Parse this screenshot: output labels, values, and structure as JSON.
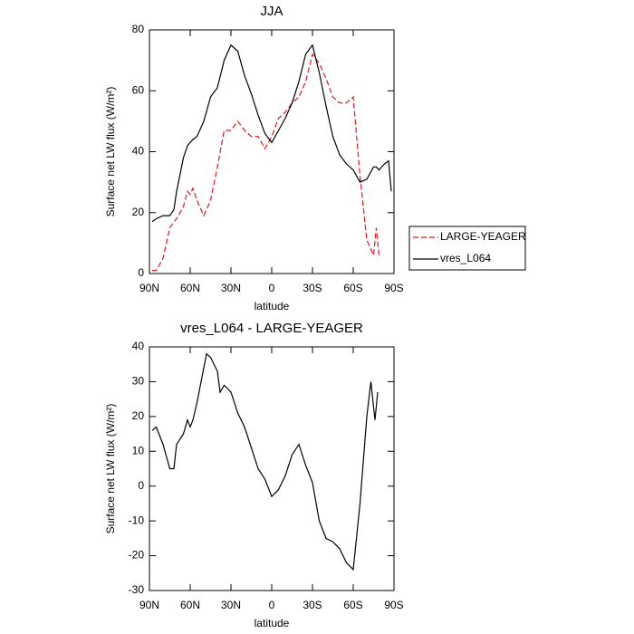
{
  "chart_data": [
    {
      "type": "line",
      "title": "JJA",
      "x_label": "latitude",
      "y_label": "Surface net LW flux (W/m²)",
      "x": [
        88,
        85,
        80,
        75,
        72,
        70,
        65,
        62,
        60,
        58,
        55,
        50,
        45,
        40,
        35,
        30,
        25,
        20,
        15,
        10,
        5,
        0,
        -5,
        -10,
        -15,
        -20,
        -25,
        -30,
        -35,
        -40,
        -45,
        -50,
        -55,
        -60,
        -65,
        -70,
        -75,
        -77,
        -79,
        -83,
        -86,
        -88
      ],
      "series": [
        {
          "name": "LARGE-YEAGER",
          "color": "#e31a1c",
          "dash": true,
          "values": [
            1,
            1,
            5,
            15,
            17,
            18,
            22,
            27,
            26,
            28,
            24,
            19,
            24,
            35,
            47,
            47,
            50,
            47,
            45,
            45,
            41,
            45,
            51,
            53,
            56,
            58,
            63,
            72,
            69,
            64,
            58,
            56,
            56,
            58,
            32,
            11,
            6,
            15,
            6,
            null,
            null,
            null
          ]
        },
        {
          "name": "vres_L064",
          "color": "#000000",
          "dash": false,
          "values": [
            17,
            18,
            19,
            19,
            21,
            27,
            38,
            42,
            43,
            44,
            45,
            50,
            58,
            61,
            70,
            75,
            73,
            65,
            59,
            52,
            46,
            43,
            47,
            51,
            56,
            63,
            72,
            75,
            66,
            55,
            45,
            39,
            36,
            34,
            30,
            31,
            35,
            35,
            34,
            36,
            37,
            27
          ]
        }
      ],
      "xlim": [
        90,
        -90
      ],
      "xticks": [
        {
          "value": 90,
          "label": "90N"
        },
        {
          "value": 60,
          "label": "60N"
        },
        {
          "value": 30,
          "label": "30N"
        },
        0,
        {
          "value": -30,
          "label": "30S"
        },
        {
          "value": -60,
          "label": "60S"
        },
        {
          "value": -90,
          "label": "90S"
        }
      ],
      "ylim": [
        0,
        80
      ],
      "yticks": [
        0,
        20,
        40,
        60,
        80
      ],
      "legend": "right"
    },
    {
      "type": "line",
      "title": "vres_L064 - LARGE-YEAGER",
      "x_label": "latitude",
      "y_label": "Surface net LW flux (W/m²)",
      "x": [
        88,
        85,
        80,
        75,
        72,
        70,
        65,
        62,
        60,
        58,
        55,
        50,
        48,
        45,
        40,
        38,
        35,
        30,
        25,
        20,
        15,
        10,
        5,
        0,
        -5,
        -10,
        -15,
        -20,
        -25,
        -30,
        -35,
        -40,
        -45,
        -50,
        -55,
        -60,
        -65,
        -70,
        -73,
        -76,
        -78
      ],
      "series": [
        {
          "color": "#000000",
          "dash": false,
          "values": [
            16,
            17,
            12,
            5,
            5,
            12,
            15,
            19,
            17,
            19,
            24,
            34,
            38,
            37,
            33,
            27,
            29,
            27,
            21,
            17,
            11,
            5,
            2,
            -3,
            -1,
            3,
            9,
            12,
            6,
            1,
            -10,
            -15,
            -16,
            -18,
            -22,
            -24,
            -5,
            20,
            30,
            19,
            27
          ]
        }
      ],
      "xlim": [
        90,
        -90
      ],
      "xticks": [
        {
          "value": 90,
          "label": "90N"
        },
        {
          "value": 60,
          "label": "60N"
        },
        {
          "value": 30,
          "label": "30N"
        },
        0,
        {
          "value": -30,
          "label": "30S"
        },
        {
          "value": -60,
          "label": "60S"
        },
        {
          "value": -90,
          "label": "90S"
        }
      ],
      "ylim": [
        -30,
        40
      ],
      "yticks": [
        -30,
        -20,
        -10,
        0,
        10,
        20,
        30,
        40
      ]
    }
  ]
}
